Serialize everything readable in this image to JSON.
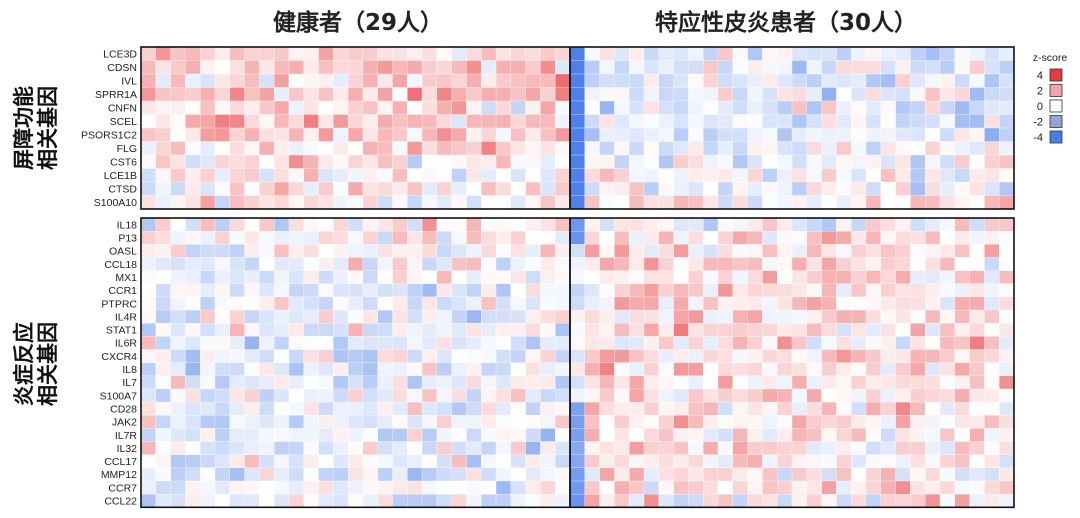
{
  "chart_data": {
    "type": "heatmap",
    "groups": [
      {
        "name": "健康者（29人）",
        "n": 29
      },
      {
        "name": "特应性皮炎患者（30人）",
        "n": 30
      }
    ],
    "legend": {
      "title": "z-score",
      "ticks": [
        "4",
        "2",
        "0",
        "-2",
        "-4"
      ],
      "colors": [
        "#e8393c",
        "#f4a5a5",
        "#ffffff",
        "#8fa8d8",
        "#4a7de8"
      ]
    },
    "value_range": [
      -4,
      4
    ],
    "panels": [
      {
        "label_lines": [
          "屏障功能",
          "相关基因"
        ],
        "rows": [
          {
            "gene": "LCE3D",
            "healthy_mean": 0.8,
            "patient_mean": -0.6
          },
          {
            "gene": "CDSN",
            "healthy_mean": 0.9,
            "patient_mean": -0.6
          },
          {
            "gene": "IVL",
            "healthy_mean": 0.9,
            "patient_mean": -0.5
          },
          {
            "gene": "SPRR1A",
            "healthy_mean": 1.0,
            "patient_mean": -0.5
          },
          {
            "gene": "CNFN",
            "healthy_mean": 0.9,
            "patient_mean": -0.5
          },
          {
            "gene": "SCEL",
            "healthy_mean": 1.0,
            "patient_mean": -0.6
          },
          {
            "gene": "PSORS1C2",
            "healthy_mean": 0.9,
            "patient_mean": -0.6
          },
          {
            "gene": "FLG",
            "healthy_mean": 0.7,
            "patient_mean": -0.4
          },
          {
            "gene": "CST6",
            "healthy_mean": 0.4,
            "patient_mean": -0.1
          },
          {
            "gene": "LCE1B",
            "healthy_mean": 0.2,
            "patient_mean": 0.0
          },
          {
            "gene": "CTSD",
            "healthy_mean": 0.3,
            "patient_mean": -0.1
          },
          {
            "gene": "S100A10",
            "healthy_mean": 0.2,
            "patient_mean": 0.2
          }
        ]
      },
      {
        "label_lines": [
          "炎症反应",
          "相关基因"
        ],
        "rows": [
          {
            "gene": "IL18",
            "healthy_mean": 0.2,
            "patient_mean": -0.1
          },
          {
            "gene": "P13",
            "healthy_mean": 0.1,
            "patient_mean": 0.3
          },
          {
            "gene": "OASL",
            "healthy_mean": -0.1,
            "patient_mean": 0.3
          },
          {
            "gene": "CCL18",
            "healthy_mean": -0.3,
            "patient_mean": 0.6
          },
          {
            "gene": "MX1",
            "healthy_mean": -0.2,
            "patient_mean": 0.6
          },
          {
            "gene": "CCR1",
            "healthy_mean": -0.4,
            "patient_mean": 0.7
          },
          {
            "gene": "PTPRC",
            "healthy_mean": -0.4,
            "patient_mean": 0.6
          },
          {
            "gene": "IL4R",
            "healthy_mean": -0.5,
            "patient_mean": 0.6
          },
          {
            "gene": "STAT1",
            "healthy_mean": -0.4,
            "patient_mean": 0.7
          },
          {
            "gene": "IL6R",
            "healthy_mean": -0.5,
            "patient_mean": 0.7
          },
          {
            "gene": "CXCR4",
            "healthy_mean": -0.5,
            "patient_mean": 0.7
          },
          {
            "gene": "IL8",
            "healthy_mean": -0.4,
            "patient_mean": 0.6
          },
          {
            "gene": "IL7",
            "healthy_mean": -0.2,
            "patient_mean": 0.6
          },
          {
            "gene": "S100A7",
            "healthy_mean": -0.2,
            "patient_mean": 0.5
          },
          {
            "gene": "CD28",
            "healthy_mean": -0.3,
            "patient_mean": 0.5
          },
          {
            "gene": "JAK2",
            "healthy_mean": -0.5,
            "patient_mean": 0.6
          },
          {
            "gene": "IL7R",
            "healthy_mean": -0.5,
            "patient_mean": 0.5
          },
          {
            "gene": "IL32",
            "healthy_mean": -0.4,
            "patient_mean": 0.5
          },
          {
            "gene": "CCL17",
            "healthy_mean": -0.4,
            "patient_mean": 0.4
          },
          {
            "gene": "MMP12",
            "healthy_mean": -0.4,
            "patient_mean": 0.4
          },
          {
            "gene": "CCR7",
            "healthy_mean": -0.4,
            "patient_mean": 0.4
          },
          {
            "gene": "CCL22",
            "healthy_mean": -0.4,
            "patient_mean": 0.4
          }
        ]
      }
    ]
  }
}
